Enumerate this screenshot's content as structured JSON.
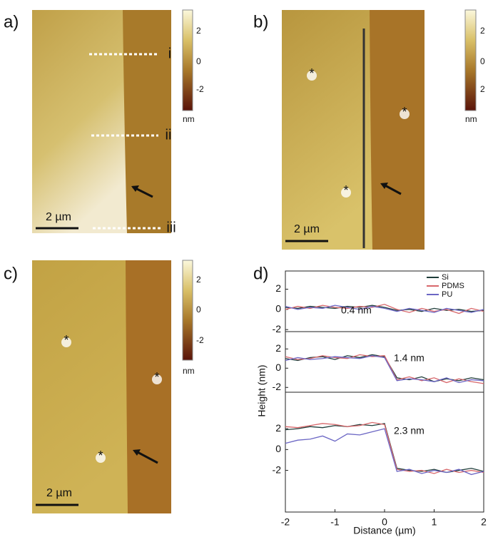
{
  "panels": [
    {
      "label": "a)",
      "colorbar": {
        "ticks": [
          "2",
          "0",
          "-2"
        ],
        "unit": "nm"
      },
      "scale_bar": "2 µm",
      "markers": [
        "i",
        "ii",
        "iii"
      ]
    },
    {
      "label": "b)",
      "colorbar": {
        "ticks": [
          "2",
          "0",
          "2"
        ],
        "unit": "nm"
      },
      "scale_bar": "2 µm",
      "markers": [
        "*",
        "*",
        "*"
      ]
    },
    {
      "label": "c)",
      "colorbar": {
        "ticks": [
          "2",
          "0",
          "-2"
        ],
        "unit": "nm"
      },
      "scale_bar": "2 µm",
      "markers": [
        "*",
        "*",
        "*"
      ]
    }
  ],
  "chart_label": "d)",
  "chart_data": [
    {
      "type": "line",
      "annotation": "0.4 nm",
      "legend": true,
      "x": [
        -2,
        -1.75,
        -1.5,
        -1.25,
        -1,
        -0.75,
        -0.5,
        -0.25,
        0,
        0.25,
        0.5,
        0.75,
        1,
        1.25,
        1.5,
        1.75,
        2
      ],
      "xlim": [
        -2,
        2
      ],
      "ylim": [
        -2.2,
        3.8
      ],
      "yticks": [
        2,
        0,
        -2
      ],
      "series": [
        {
          "name": "Si",
          "color": "#1f3d3a",
          "values": [
            0.2,
            0.1,
            0.3,
            0.2,
            0.1,
            0.3,
            0.2,
            0.4,
            0.2,
            -0.1,
            0,
            -0.2,
            0.1,
            -0.1,
            0,
            -0.2,
            -0.1
          ]
        },
        {
          "name": "PDMS",
          "color": "#d8676b",
          "values": [
            0,
            0.3,
            0.1,
            0.4,
            0.2,
            0.1,
            0.3,
            0.2,
            0.5,
            0,
            -0.3,
            0.1,
            -0.2,
            0,
            -0.4,
            0.1,
            -0.2
          ]
        },
        {
          "name": "PU",
          "color": "#6b66c4",
          "values": [
            0.3,
            0,
            0.2,
            0.1,
            0.4,
            0.2,
            0,
            0.3,
            0.1,
            -0.2,
            0.1,
            -0.1,
            -0.3,
            0.1,
            -0.1,
            -0.3,
            0
          ]
        }
      ]
    },
    {
      "type": "line",
      "annotation": "1.4 nm",
      "ylabel": "Height (nm)",
      "x": [
        -2,
        -1.75,
        -1.5,
        -1.25,
        -1,
        -0.75,
        -0.5,
        -0.25,
        0,
        0.25,
        0.5,
        0.75,
        1,
        1.25,
        1.5,
        1.75,
        2
      ],
      "xlim": [
        -2,
        2
      ],
      "ylim": [
        -2.5,
        3.8
      ],
      "yticks": [
        2,
        0,
        -2
      ],
      "series": [
        {
          "color": "#1f3d3a",
          "values": [
            1.0,
            0.8,
            1.1,
            1.2,
            0.9,
            1.3,
            1.1,
            1.4,
            1.2,
            -1.0,
            -1.2,
            -0.9,
            -1.4,
            -1.1,
            -1.3,
            -1.0,
            -1.2
          ]
        },
        {
          "color": "#d8676b",
          "values": [
            1.2,
            0.9,
            1.0,
            1.3,
            1.1,
            1.0,
            1.4,
            1.2,
            1.3,
            -1.2,
            -0.9,
            -1.3,
            -1.0,
            -1.5,
            -1.1,
            -1.4,
            -1.6
          ]
        },
        {
          "color": "#6b66c4",
          "values": [
            0.8,
            1.1,
            0.9,
            1.0,
            1.2,
            1.1,
            1.0,
            1.3,
            1.1,
            -1.3,
            -1.1,
            -1.2,
            -1.4,
            -1.0,
            -1.5,
            -1.2,
            -1.3
          ]
        }
      ]
    },
    {
      "type": "line",
      "annotation": "2.3 nm",
      "xlabel": "Distance (µm)",
      "x": [
        -2,
        -1.75,
        -1.5,
        -1.25,
        -1,
        -0.75,
        -0.5,
        -0.25,
        0,
        0.25,
        0.5,
        0.75,
        1,
        1.25,
        1.5,
        1.75,
        2
      ],
      "xlim": [
        -2,
        2
      ],
      "xticks": [
        -2,
        -1,
        0,
        1,
        2
      ],
      "ylim": [
        -6,
        5.5
      ],
      "yticks": [
        2,
        0,
        -2
      ],
      "series": [
        {
          "color": "#1f3d3a",
          "values": [
            1.9,
            2.0,
            2.2,
            2.1,
            2.3,
            2.2,
            2.4,
            2.3,
            2.5,
            -1.8,
            -2.0,
            -2.1,
            -1.9,
            -2.2,
            -2.0,
            -1.8,
            -2.1
          ]
        },
        {
          "color": "#d8676b",
          "values": [
            2.2,
            2.1,
            2.3,
            2.5,
            2.4,
            2.2,
            2.3,
            2.6,
            2.4,
            -1.9,
            -2.1,
            -2.0,
            -2.3,
            -1.9,
            -2.2,
            -2.0,
            -2.2
          ]
        },
        {
          "color": "#6b66c4",
          "values": [
            0.6,
            0.9,
            1.0,
            1.3,
            0.8,
            1.5,
            1.4,
            1.7,
            2.0,
            -2.1,
            -1.9,
            -2.3,
            -2.0,
            -2.2,
            -1.9,
            -2.4,
            -2.1
          ]
        }
      ]
    }
  ]
}
